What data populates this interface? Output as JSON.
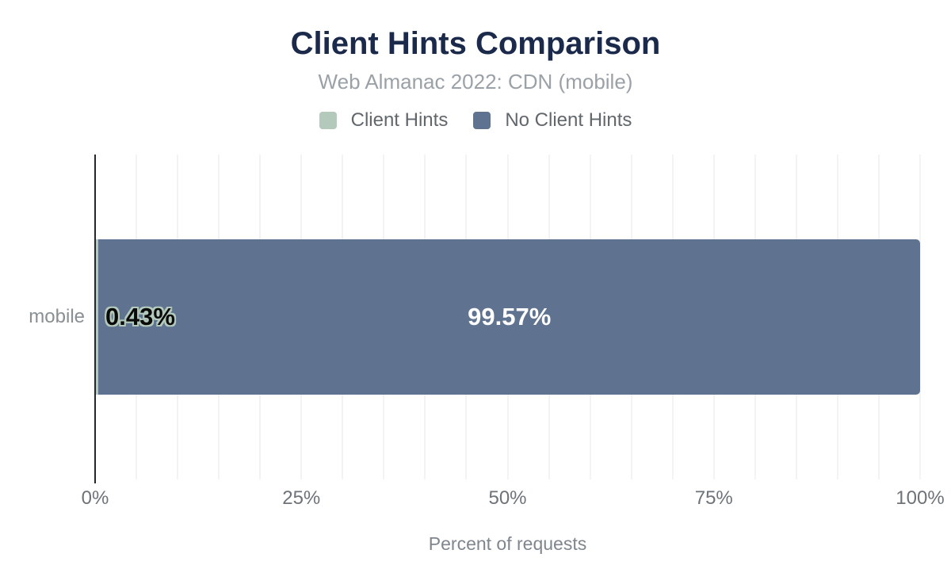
{
  "chart": {
    "title": "Client Hints Comparison",
    "subtitle": "Web Almanac 2022: CDN (mobile)",
    "legend": [
      {
        "label": "Client Hints",
        "color": "#b3c9bc"
      },
      {
        "label": "No Client Hints",
        "color": "#5f7390"
      }
    ],
    "category_label": "mobile",
    "bars": [
      {
        "name": "Client Hints",
        "value": 0.43,
        "label": "0.43%",
        "color": "#b3c9bc"
      },
      {
        "name": "No Client Hints",
        "value": 99.57,
        "label": "99.57%",
        "color": "#5f7390"
      }
    ],
    "xticks": [
      "0%",
      "25%",
      "50%",
      "75%",
      "100%"
    ],
    "xlabel": "Percent of requests"
  },
  "chart_data": {
    "type": "bar",
    "orientation": "horizontal",
    "stacked": true,
    "title": "Client Hints Comparison",
    "subtitle": "Web Almanac 2022: CDN (mobile)",
    "categories": [
      "mobile"
    ],
    "series": [
      {
        "name": "Client Hints",
        "values": [
          0.43
        ],
        "color": "#b3c9bc"
      },
      {
        "name": "No Client Hints",
        "values": [
          99.57
        ],
        "color": "#5f7390"
      }
    ],
    "data_labels": [
      "0.43%",
      "99.57%"
    ],
    "xlabel": "Percent of requests",
    "ylabel": "",
    "xlim": [
      0,
      100
    ],
    "xticks": [
      0,
      25,
      50,
      75,
      100
    ],
    "grid": "vertical gridlines every 5%",
    "legend_position": "top-center"
  }
}
